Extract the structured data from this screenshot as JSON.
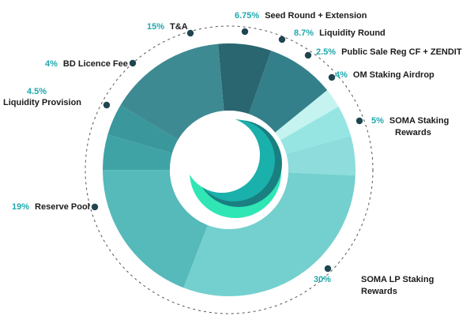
{
  "chart_data": {
    "type": "pie",
    "title": "",
    "donut": true,
    "colors": {
      "dot": "#1f4650",
      "dashed_ring": "#555555",
      "percent_text": "#1fa8ad",
      "label_text": "#1b1b1b"
    },
    "slices": [
      {
        "pct_label": "6.75%",
        "label": [
          "Seed Round + Extension"
        ],
        "value": 6.75,
        "color": "#2a6670"
      },
      {
        "pct_label": "8.7%",
        "label": [
          "Liquidity Round"
        ],
        "value": 8.7,
        "color": "#33808a"
      },
      {
        "pct_label": "2.5%",
        "label": [
          "Public Sale Reg CF + ZENDIT"
        ],
        "value": 2.5,
        "color": "#c4f3f0"
      },
      {
        "pct_label": "4%",
        "label": [
          "OM Staking Airdrop"
        ],
        "value": 4,
        "color": "#96e5e3"
      },
      {
        "pct_label": "5%",
        "label": [
          "SOMA Staking",
          "Rewards"
        ],
        "value": 5,
        "color": "#8edcdc"
      },
      {
        "pct_label": "30%",
        "label": [
          "SOMA LP Staking",
          "Rewards"
        ],
        "value": 30,
        "color": "#74d0cf"
      },
      {
        "pct_label": "19%",
        "label": [
          "Reserve Pool"
        ],
        "value": 19,
        "color": "#56b9ba"
      },
      {
        "pct_label": "4.5%",
        "label": [
          "Liquidity Provision"
        ],
        "value": 4.5,
        "color": "#3fa3a6"
      },
      {
        "pct_label": "4%",
        "label": [
          "BD Licence Fee"
        ],
        "value": 4,
        "color": "#3a979b"
      },
      {
        "pct_label": "15%",
        "label": [
          "T&A"
        ],
        "value": 15,
        "color": "#3e8a92"
      }
    ]
  }
}
